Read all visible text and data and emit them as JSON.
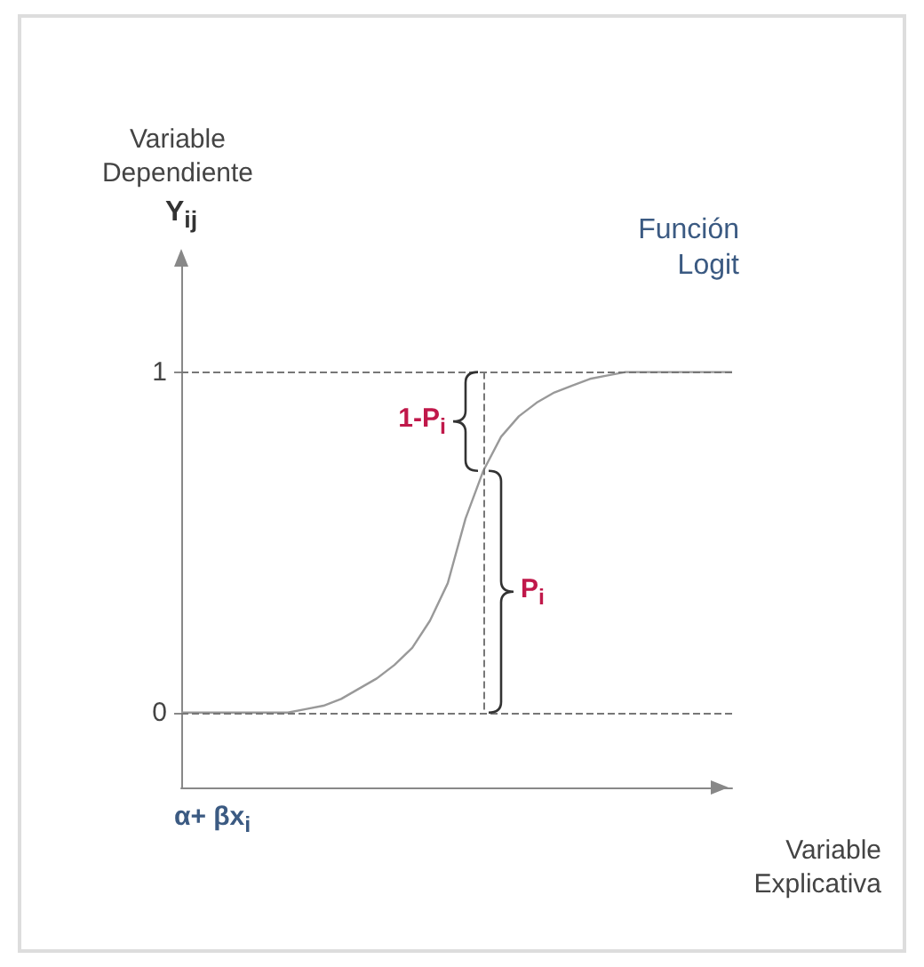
{
  "chart_data": {
    "type": "line",
    "title": "Función Logit",
    "ylabel": "Variable Dependiente",
    "xlabel": "Variable Explicativa",
    "annotations": [
      "Y$_{ij}$",
      "α+ βx$_{i}$",
      "1-P$_{i}$",
      "P$_{i}$"
    ],
    "categories": [
      null,
      null,
      null,
      null,
      null,
      null,
      null,
      null,
      null,
      null,
      null,
      null,
      null,
      null,
      null,
      null,
      null,
      null,
      null,
      null,
      null,
      null,
      null,
      null,
      null,
      null,
      null,
      null,
      null,
      null,
      null,
      null
    ],
    "values": [
      0,
      0,
      0,
      0,
      0,
      0,
      0,
      0.01,
      0.02,
      0.04,
      0.07,
      0.1,
      0.14,
      0.19,
      0.27,
      0.38,
      0.57,
      0.71,
      0.81,
      0.87,
      0.91,
      0.94,
      0.96,
      0.98,
      0.99,
      1,
      1,
      1,
      1,
      1,
      1,
      1
    ],
    "color": "#999999",
    "marker": "none",
    "line_style": "solid",
    "ylim": [
      -0.22,
      1.32
    ],
    "yticks": [
      0,
      1
    ],
    "tick_labels": "y",
    "grid": false,
    "ref_lines": [
      {
        "axis": "y",
        "value": 0,
        "line_style": "dashed"
      },
      {
        "axis": "y",
        "value": 1,
        "line_style": "dashed"
      }
    ]
  }
}
